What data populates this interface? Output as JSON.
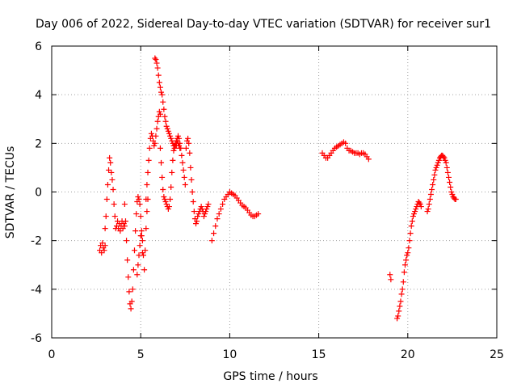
{
  "chart_data": {
    "type": "scatter",
    "title": "Day 006 of 2022, Sidereal Day-to-day VTEC variation (SDTVAR) for receiver sur1",
    "xlabel": "GPS time / hours",
    "ylabel": "SDTVAR / TECUs",
    "xlim": [
      0,
      25
    ],
    "ylim": [
      -6,
      6
    ],
    "x_ticks": [
      0,
      5,
      10,
      15,
      20,
      25
    ],
    "y_ticks": [
      -6,
      -4,
      -2,
      0,
      2,
      4,
      6
    ],
    "grid": true,
    "marker": "+",
    "marker_color": "#ff0000",
    "segments": [
      {
        "name": "arc-1",
        "x": [
          2.7,
          2.75,
          2.8,
          2.85,
          2.9,
          2.95,
          3.0
        ],
        "y": [
          -2.4,
          -2.2,
          -2.5,
          -2.1,
          -2.3,
          -2.4,
          -2.2
        ]
      },
      {
        "name": "arc-2",
        "x": [
          3.0,
          3.05,
          3.1,
          3.15,
          3.2,
          3.25,
          3.3,
          3.35,
          3.4,
          3.45,
          3.5,
          3.55,
          3.6,
          3.65,
          3.7,
          3.75,
          3.8,
          3.85,
          3.9,
          3.95,
          4.0,
          4.05,
          4.1
        ],
        "y": [
          -1.5,
          -1.0,
          -0.3,
          0.3,
          0.9,
          1.4,
          1.2,
          0.8,
          0.5,
          0.1,
          -0.5,
          -1.0,
          -1.5,
          -1.4,
          -1.2,
          -1.5,
          -1.3,
          -1.6,
          -1.4,
          -1.2,
          -1.5,
          -1.3,
          -1.4
        ]
      },
      {
        "name": "arc-3",
        "x": [
          4.1,
          4.15,
          4.2,
          4.25,
          4.3,
          4.35,
          4.4,
          4.45,
          4.5,
          4.55,
          4.6,
          4.65,
          4.7,
          4.75,
          4.8,
          4.85,
          4.9,
          4.95,
          5.0,
          5.05,
          5.1
        ],
        "y": [
          -0.5,
          -1.2,
          -2.0,
          -2.8,
          -3.5,
          -4.1,
          -4.6,
          -4.8,
          -4.5,
          -4.0,
          -3.2,
          -2.4,
          -1.6,
          -0.9,
          -0.4,
          -0.2,
          -0.3,
          -0.5,
          -1.0,
          -1.8,
          -2.5
        ]
      },
      {
        "name": "arc-4",
        "x": [
          4.8,
          4.85,
          4.9,
          4.95,
          5.0,
          5.05,
          5.1,
          5.15,
          5.2,
          5.25,
          5.3,
          5.35,
          5.4
        ],
        "y": [
          -3.4,
          -3.0,
          -2.6,
          -2.2,
          -1.8,
          -1.6,
          -2.0,
          -2.6,
          -3.2,
          -2.4,
          -1.5,
          -0.8,
          -0.3
        ]
      },
      {
        "name": "arc-5",
        "x": [
          5.3,
          5.35,
          5.4,
          5.45,
          5.5,
          5.55,
          5.6,
          5.65,
          5.7,
          5.75,
          5.8,
          5.85,
          5.9,
          5.95,
          6.0,
          6.05,
          6.1
        ],
        "y": [
          -0.3,
          0.3,
          0.8,
          1.3,
          1.8,
          2.2,
          2.4,
          2.3,
          2.1,
          1.9,
          2.0,
          2.3,
          2.6,
          2.9,
          3.1,
          3.3,
          3.2
        ]
      },
      {
        "name": "arc-6",
        "x": [
          5.8,
          5.85,
          5.9,
          5.95,
          6.0,
          6.05,
          6.1,
          6.15,
          6.2,
          6.25,
          6.3,
          6.35,
          6.4,
          6.45,
          6.5,
          6.55,
          6.6,
          6.65,
          6.7,
          6.75,
          6.8,
          6.85,
          6.9,
          6.95,
          7.0,
          7.05,
          7.1,
          7.15,
          7.2
        ],
        "y": [
          5.5,
          5.45,
          5.3,
          5.1,
          4.8,
          4.5,
          4.3,
          4.1,
          4.0,
          3.7,
          3.4,
          3.1,
          2.9,
          2.7,
          2.6,
          2.5,
          2.4,
          2.3,
          2.2,
          2.1,
          2.0,
          1.9,
          1.8,
          1.9,
          2.0,
          2.1,
          2.0,
          1.9,
          1.8
        ]
      },
      {
        "name": "arc-7",
        "x": [
          6.1,
          6.15,
          6.2,
          6.25,
          6.3,
          6.35,
          6.4,
          6.45,
          6.5,
          6.55,
          6.6,
          6.65,
          6.7,
          6.75,
          6.8,
          6.85,
          6.9,
          6.95,
          7.0
        ],
        "y": [
          1.8,
          1.2,
          0.6,
          0.1,
          -0.2,
          -0.3,
          -0.4,
          -0.5,
          -0.6,
          -0.7,
          -0.6,
          -0.3,
          0.2,
          0.8,
          1.3,
          1.7,
          1.9,
          2.0,
          1.9
        ]
      },
      {
        "name": "arc-8",
        "x": [
          7.0,
          7.05,
          7.1,
          7.15,
          7.2,
          7.25,
          7.3,
          7.35,
          7.4,
          7.45,
          7.5,
          7.55,
          7.6,
          7.65,
          7.7,
          7.75,
          7.8,
          7.85,
          7.9,
          7.95,
          8.0,
          8.05,
          8.1,
          8.15,
          8.2,
          8.25,
          8.3,
          8.35,
          8.4,
          8.45,
          8.5,
          8.55,
          8.6,
          8.65,
          8.7,
          8.75,
          8.8
        ],
        "y": [
          2.1,
          2.2,
          2.3,
          2.2,
          2.0,
          1.8,
          1.5,
          1.2,
          0.9,
          0.6,
          0.3,
          1.8,
          2.1,
          2.2,
          2.0,
          1.6,
          1.0,
          0.5,
          0.0,
          -0.4,
          -0.8,
          -1.1,
          -1.3,
          -1.2,
          -1.0,
          -0.9,
          -0.8,
          -0.7,
          -0.6,
          -0.7,
          -0.8,
          -1.0,
          -0.9,
          -0.8,
          -0.7,
          -0.6,
          -0.5
        ]
      },
      {
        "name": "arc-9",
        "x": [
          9.0,
          9.1,
          9.2,
          9.3,
          9.4,
          9.5,
          9.6,
          9.7,
          9.8,
          9.9,
          10.0,
          10.1,
          10.2,
          10.3,
          10.4,
          10.5,
          10.6,
          10.7,
          10.8,
          10.9,
          11.0,
          11.1,
          11.2,
          11.3,
          11.4,
          11.5,
          11.6
        ],
        "y": [
          -2.0,
          -1.7,
          -1.4,
          -1.1,
          -0.9,
          -0.7,
          -0.5,
          -0.3,
          -0.2,
          -0.1,
          0.0,
          -0.05,
          -0.1,
          -0.15,
          -0.25,
          -0.35,
          -0.45,
          -0.55,
          -0.6,
          -0.65,
          -0.75,
          -0.85,
          -0.95,
          -1.0,
          -1.0,
          -0.95,
          -0.9
        ]
      },
      {
        "name": "arc-10",
        "x": [
          15.2,
          15.3,
          15.4,
          15.5,
          15.6,
          15.7,
          15.8,
          15.9,
          16.0,
          16.1,
          16.2,
          16.3,
          16.4,
          16.5,
          16.6,
          16.7,
          16.8,
          16.9,
          17.0,
          17.1,
          17.2,
          17.3,
          17.4,
          17.5,
          17.6,
          17.7,
          17.8
        ],
        "y": [
          1.6,
          1.5,
          1.4,
          1.4,
          1.5,
          1.6,
          1.7,
          1.8,
          1.85,
          1.9,
          1.95,
          2.0,
          2.05,
          2.0,
          1.8,
          1.7,
          1.7,
          1.65,
          1.6,
          1.6,
          1.6,
          1.55,
          1.6,
          1.6,
          1.55,
          1.45,
          1.35
        ]
      },
      {
        "name": "arc-11",
        "x": [
          19.0,
          19.05
        ],
        "y": [
          -3.4,
          -3.6
        ]
      },
      {
        "name": "arc-12",
        "x": [
          19.4,
          19.45,
          19.5,
          19.55,
          19.6,
          19.65,
          19.7,
          19.75,
          19.8,
          19.85,
          19.9,
          19.95,
          20.0,
          20.05,
          20.1,
          20.15,
          20.2,
          20.25,
          20.3,
          20.35,
          20.4,
          20.45,
          20.5,
          20.55,
          20.6,
          20.65,
          20.7,
          20.75
        ],
        "y": [
          -5.2,
          -5.1,
          -4.9,
          -4.7,
          -4.5,
          -4.2,
          -4.0,
          -3.7,
          -3.3,
          -3.0,
          -2.8,
          -2.6,
          -2.5,
          -2.3,
          -2.0,
          -1.7,
          -1.4,
          -1.2,
          -1.0,
          -0.9,
          -0.8,
          -0.7,
          -0.6,
          -0.5,
          -0.4,
          -0.45,
          -0.5,
          -0.6
        ]
      },
      {
        "name": "arc-13",
        "x": [
          21.1,
          21.15,
          21.2,
          21.25,
          21.3,
          21.35,
          21.4,
          21.45,
          21.5,
          21.55,
          21.6,
          21.65,
          21.7,
          21.75,
          21.8,
          21.85,
          21.9,
          21.95,
          22.0,
          22.05,
          22.1,
          22.15,
          22.2,
          22.25,
          22.3,
          22.35,
          22.4,
          22.45,
          22.5,
          22.55,
          22.6,
          22.65,
          22.7
        ],
        "y": [
          -0.8,
          -0.7,
          -0.5,
          -0.3,
          -0.1,
          0.1,
          0.3,
          0.5,
          0.7,
          0.9,
          1.0,
          1.1,
          1.2,
          1.3,
          1.4,
          1.45,
          1.5,
          1.5,
          1.45,
          1.4,
          1.3,
          1.2,
          1.0,
          0.8,
          0.6,
          0.4,
          0.2,
          0.0,
          -0.1,
          -0.2,
          -0.25,
          -0.3,
          -0.3
        ]
      }
    ]
  }
}
